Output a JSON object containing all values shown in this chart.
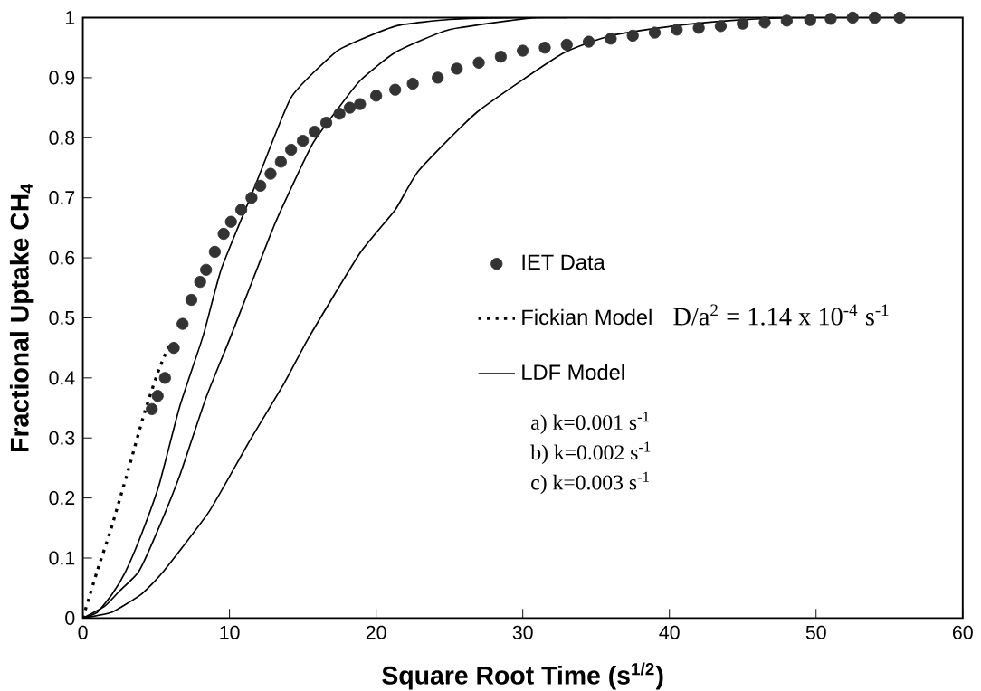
{
  "chart_data": {
    "type": "line",
    "xlabel": "Square Root Time (s$^{1/2}$)",
    "ylabel": "Fractional Uptake CH$_{4}$",
    "xlim": [
      0,
      60
    ],
    "xticks": [
      0,
      10,
      20,
      30,
      40,
      50,
      60
    ],
    "ylim": [
      0,
      1
    ],
    "yticks": [
      0,
      0.1,
      0.2,
      0.3,
      0.4,
      0.5,
      0.6,
      0.7,
      0.8,
      0.9,
      1
    ],
    "legend": "right",
    "grid": false,
    "annotations": [
      "D/a$^{2}$ = 1.14 x 10$^{-4}$ s$^{-1}$",
      "a) k=0.001 s$^{-1}$",
      "b) k=0.002 s$^{-1}$",
      "c) k=0.003 s$^{-1}$"
    ],
    "series": [
      {
        "name": "IET Data",
        "type": "scatter",
        "marker": "circle",
        "color": "#333333",
        "x": [
          4.7,
          5.1,
          5.6,
          6.2,
          6.8,
          7.4,
          8.0,
          8.4,
          9.0,
          9.6,
          10.1,
          10.8,
          11.5,
          12.1,
          12.8,
          13.5,
          14.2,
          15.0,
          15.8,
          16.6,
          17.5,
          18.2,
          18.9,
          20.0,
          21.3,
          22.5,
          24.2,
          25.5,
          27,
          28.5,
          30,
          31.5,
          33,
          34.5,
          36,
          37.5,
          39,
          40.5,
          42,
          43.5,
          45,
          46.5,
          48,
          49.6,
          51,
          52.5,
          54,
          55.7
        ],
        "values": [
          0.348,
          0.37,
          0.4,
          0.45,
          0.49,
          0.53,
          0.56,
          0.58,
          0.61,
          0.64,
          0.66,
          0.68,
          0.7,
          0.72,
          0.74,
          0.76,
          0.78,
          0.795,
          0.81,
          0.825,
          0.84,
          0.85,
          0.856,
          0.87,
          0.88,
          0.89,
          0.9,
          0.915,
          0.925,
          0.935,
          0.945,
          0.95,
          0.955,
          0.96,
          0.965,
          0.97,
          0.975,
          0.98,
          0.983,
          0.986,
          0.99,
          0.992,
          0.995,
          0.996,
          0.998,
          1,
          1,
          1
        ]
      },
      {
        "name": "Fickian Model",
        "line_style": "dotted",
        "color": "#000000",
        "x": [
          0,
          0.96,
          1.9,
          3.1,
          4.2,
          5.2,
          6.0
        ],
        "values": [
          0,
          0.077,
          0.147,
          0.247,
          0.342,
          0.415,
          0.46
        ]
      },
      {
        "name": "LDF Model",
        "line_style": "solid",
        "color": "#000000",
        "x": [
          0,
          2,
          4,
          5.4,
          8.6,
          11.3,
          13.75,
          15.4,
          18.9,
          21.3,
          22.9,
          26.9,
          32.7,
          36,
          40.2,
          44,
          48.2,
          50
        ],
        "values": [
          0,
          0.01,
          0.04,
          0.075,
          0.177,
          0.292,
          0.392,
          0.467,
          0.608,
          0.68,
          0.745,
          0.843,
          0.94,
          0.97,
          0.986,
          0.995,
          1,
          1
        ]
      },
      {
        "line_style": "solid",
        "color": "#000000",
        "x": [
          0,
          1.5,
          2.5,
          3.8,
          5,
          6.6,
          8.4,
          10.1,
          13.1,
          15.6,
          17.2,
          18.9,
          21.3,
          25,
          30.9,
          36
        ],
        "values": [
          0,
          0.02,
          0.045,
          0.077,
          0.14,
          0.237,
          0.367,
          0.47,
          0.657,
          0.787,
          0.842,
          0.895,
          0.942,
          0.98,
          1,
          1
        ]
      },
      {
        "line_style": "solid",
        "color": "#000000",
        "x": [
          0,
          1,
          2,
          2.9,
          4,
          5.2,
          6.6,
          8.2,
          9.45,
          11.7,
          14.2,
          17.2,
          18.9,
          21.5,
          25,
          29.5,
          33
        ],
        "values": [
          0,
          0.01,
          0.04,
          0.077,
          0.14,
          0.222,
          0.352,
          0.47,
          0.582,
          0.717,
          0.867,
          0.942,
          0.963,
          0.987,
          0.997,
          1,
          1
        ]
      }
    ]
  }
}
